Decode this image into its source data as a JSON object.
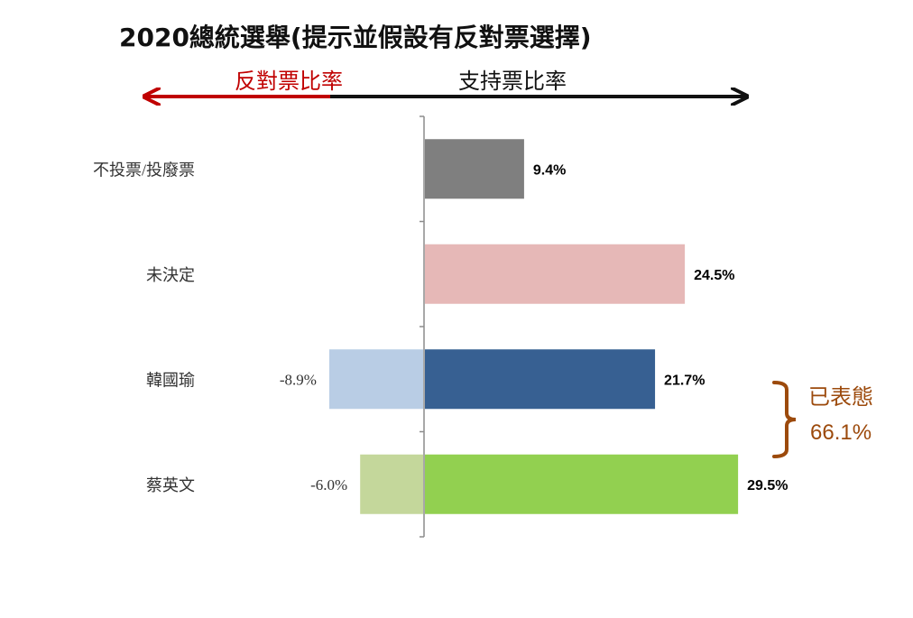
{
  "chart_data": {
    "type": "bar",
    "orientation": "horizontal",
    "title": "2020總統選舉(提示並假設有反對票選擇)",
    "direction_labels": {
      "negative": "反對票比率",
      "positive": "支持票比率"
    },
    "categories": [
      "不投票/投廢票",
      "未決定",
      "韓國瑜",
      "蔡英文"
    ],
    "series": [
      {
        "role": "support",
        "values": [
          9.4,
          24.5,
          21.7,
          29.5
        ],
        "labels": [
          "9.4%",
          "24.5%",
          "21.7%",
          "29.5%"
        ],
        "colors": [
          "#7f7f7f",
          "#e6b8b7",
          "#376092",
          "#92d050"
        ]
      },
      {
        "role": "oppose",
        "values": [
          null,
          null,
          -8.9,
          -6.0
        ],
        "labels": [
          "",
          "",
          "-8.9%",
          "-6.0%"
        ],
        "colors": [
          "#b9cde5",
          "#b9cde5",
          "#b9cde5",
          "#c4d79b"
        ]
      }
    ],
    "annotation": {
      "label": "已表態",
      "value": "66.1%",
      "color": "#9c4a0c"
    },
    "xlim": [
      -10,
      30
    ],
    "grid": false,
    "legend": "none"
  }
}
